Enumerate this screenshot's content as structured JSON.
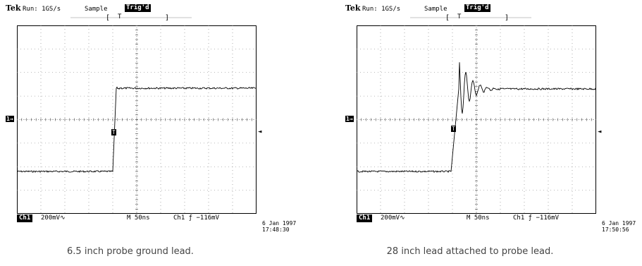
{
  "captures": [
    {
      "brand": "Tek",
      "run_status": "Run: 1GS/s",
      "acq_mode": "Sample",
      "trig_status": "Trig'd",
      "trig_pos_marker": "T",
      "ground_marker": "1→",
      "trigger_level_marker": "T",
      "trigger_arrow": "◄",
      "channel_label": "Ch1",
      "channel_scale": "200mV∿",
      "timebase": "M  50ns",
      "trigger_readout": "Ch1  ƒ  −116mV",
      "date": "6 Jan 1997",
      "time": "17:48:30",
      "caption": "6.5 inch probe ground lead.",
      "waveform": "clean-step"
    },
    {
      "brand": "Tek",
      "run_status": "Run: 1GS/s",
      "acq_mode": "Sample",
      "trig_status": "Trig'd",
      "trig_pos_marker": "T",
      "ground_marker": "1→",
      "trigger_level_marker": "T",
      "trigger_arrow": "◄",
      "channel_label": "Ch1",
      "channel_scale": "200mV∿",
      "timebase": "M  50ns",
      "trigger_readout": "Ch1  ƒ  −116mV",
      "date": "6 Jan 1997",
      "time": "17:50:56",
      "caption": "28 inch lead attached to probe lead.",
      "waveform": "ringing-step"
    }
  ]
}
